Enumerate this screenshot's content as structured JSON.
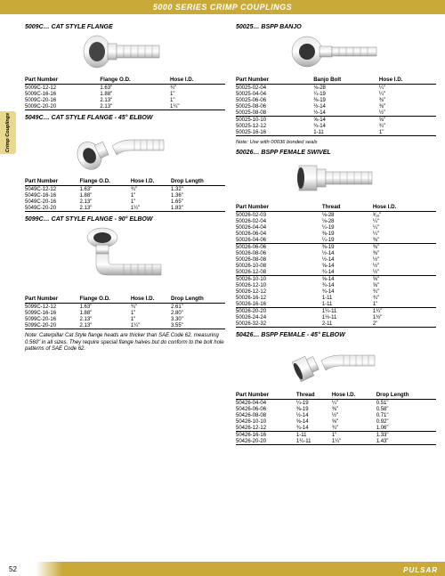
{
  "header": "5000 SERIES CRIMP COUPLINGS",
  "sideTab": "Crimp Couplings",
  "pageNum": "52",
  "brand": "PULSAR",
  "note_cat": "Note: Caterpillar Cat Style flange heads are thicker than SAE Code 62, measuring 0.560\" in all sizes. They require special flange halves but do conform to the bolt hole patterns of SAE Code 62.",
  "sec5009c": {
    "title": "5009C…  CAT STYLE FLANGE",
    "cols": [
      "Part Number",
      "Flange O.D.",
      "Hose I.D."
    ],
    "rows": [
      [
        "5009C-12-12",
        "1.63\"",
        "¾\""
      ],
      [
        "5009C-16-16",
        "1.88\"",
        "1\""
      ],
      [
        "5009C-20-16",
        "2.13\"",
        "1\""
      ],
      [
        "5009C-20-20",
        "2.13\"",
        "1¼\""
      ]
    ]
  },
  "sec5049c": {
    "title": "5049C…  CAT STYLE FLANGE - 45° ELBOW",
    "cols": [
      "Part Number",
      "Flange O.D.",
      "Hose I.D.",
      "Drop Length"
    ],
    "rows": [
      [
        "5049C-12-12",
        "1.63\"",
        "¾\"",
        "1.32\""
      ],
      [
        "5049C-16-16",
        "1.88\"",
        "1\"",
        "1.36\""
      ],
      [
        "5049C-20-16",
        "2.13\"",
        "1\"",
        "1.65\""
      ],
      [
        "5049C-20-20",
        "2.13\"",
        "1¼\"",
        "1.83\""
      ]
    ]
  },
  "sec5099c": {
    "title": "5099C…  CAT STYLE FLANGE - 90° ELBOW",
    "cols": [
      "Part Number",
      "Flange O.D.",
      "Hose I.D.",
      "Drop Length"
    ],
    "rows": [
      [
        "5099C-12-12",
        "1.63\"",
        "¾\"",
        "2.61\""
      ],
      [
        "5099C-16-16",
        "1.88\"",
        "1\"",
        "2.80\""
      ],
      [
        "5099C-20-16",
        "2.13\"",
        "1\"",
        "3.30\""
      ],
      [
        "5099C-20-20",
        "2.13\"",
        "1¼\"",
        "3.55\""
      ]
    ]
  },
  "sec50025": {
    "title": "50025…  BSPP BANJO",
    "cols": [
      "Part Number",
      "Banjo Bolt",
      "Hose I.D."
    ],
    "rows": [
      [
        "50025-02-04",
        "⅛-28",
        "¼\""
      ],
      [
        "50025-04-04",
        "¼-19",
        "¼\""
      ],
      [
        "50025-06-06",
        "⅜-19",
        "⅜\""
      ],
      [
        "50025-08-06",
        "½-14",
        "⅜\""
      ],
      [
        "50025-08-08",
        "½-14",
        "½\""
      ]
    ],
    "rows2": [
      [
        "50025-10-10",
        "⅝-14",
        "⅝\""
      ],
      [
        "50025-12-12",
        "¾-14",
        "¾\""
      ],
      [
        "50025-16-16",
        "1-11",
        "1\""
      ]
    ],
    "note": "Note: Use with 00036 bonded seals"
  },
  "sec50026": {
    "title": "50026…  BSPP FEMALE SWIVEL",
    "cols": [
      "Part Number",
      "Thread",
      "Hose I.D."
    ],
    "rows": [
      [
        "50026-02-03",
        "⅛-28",
        "³⁄₁₆\""
      ],
      [
        "50026-02-04",
        "⅛-28",
        "¼\""
      ],
      [
        "50026-04-04",
        "¼-19",
        "¼\""
      ],
      [
        "50026-06-04",
        "⅜-19",
        "¼\""
      ],
      [
        "50026-04-06",
        "¼-19",
        "⅜\""
      ]
    ],
    "rows2": [
      [
        "50026-06-06",
        "⅜-19",
        "⅜\""
      ],
      [
        "50026-08-06",
        "½-14",
        "⅜\""
      ],
      [
        "50026-08-08",
        "½-14",
        "½\""
      ],
      [
        "50026-10-08",
        "⅝-14",
        "½\""
      ],
      [
        "50026-12-08",
        "¾-14",
        "½\""
      ]
    ],
    "rows3": [
      [
        "50026-10-10",
        "⅝-14",
        "⅝\""
      ],
      [
        "50026-12-10",
        "¾-14",
        "⅝\""
      ],
      [
        "50026-12-12",
        "¾-14",
        "¾\""
      ],
      [
        "50026-16-12",
        "1-11",
        "¾\""
      ],
      [
        "50026-16-16",
        "1-11",
        "1\""
      ]
    ],
    "rows4": [
      [
        "50026-20-20",
        "1¼-11",
        "1¼\""
      ],
      [
        "50026-24-24",
        "1½-11",
        "1½\""
      ],
      [
        "50026-32-32",
        "2-11",
        "2\""
      ]
    ]
  },
  "sec50426": {
    "title": "50426…  BSPP FEMALE - 45° ELBOW",
    "cols": [
      "Part Number",
      "Thread",
      "Hose I.D.",
      "Drop Length"
    ],
    "rows": [
      [
        "50426-04-04",
        "¼-19",
        "¼\"",
        "0.51\""
      ],
      [
        "50426-06-06",
        "⅜-19",
        "⅜\"",
        "0.58\""
      ],
      [
        "50426-08-08",
        "½-14",
        "½\"",
        "0.71\""
      ],
      [
        "50426-10-10",
        "⅝-14",
        "⅝\"",
        "0.92\""
      ],
      [
        "50426-12-12",
        "¾-14",
        "¾\"",
        "1.06\""
      ]
    ],
    "rows2": [
      [
        "50426-16-16",
        "1-11",
        "1\"",
        "1.33\""
      ],
      [
        "50426-20-20",
        "1¼-11",
        "1¼\"",
        "1.43\""
      ]
    ]
  }
}
